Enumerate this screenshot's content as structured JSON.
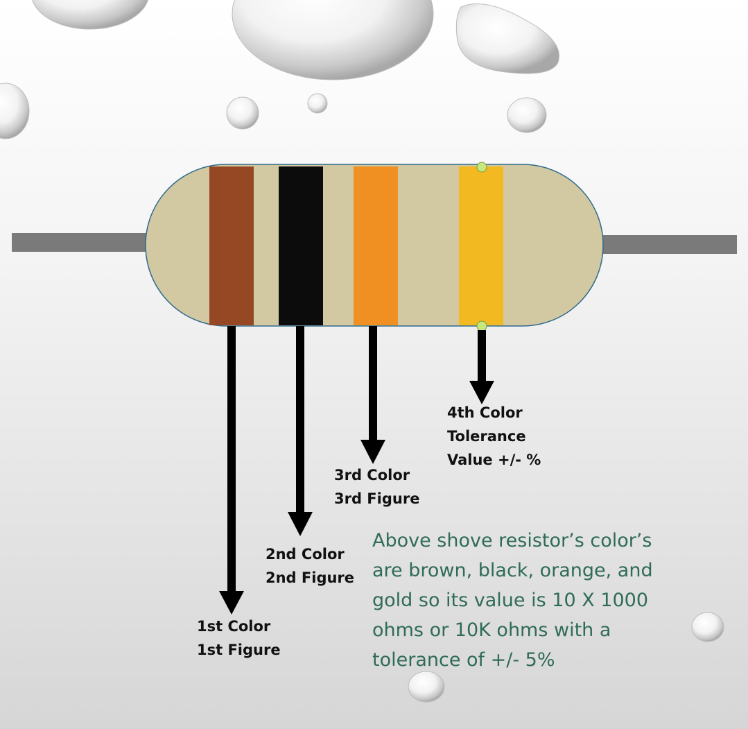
{
  "resistor": {
    "body_color": "#D2C9A2",
    "lead_color": "#7A7A7A",
    "outline_color": "#2E6A8C",
    "handle_color": "#C6E87E",
    "bands": [
      {
        "name": "brown",
        "color": "#964824"
      },
      {
        "name": "black",
        "color": "#0C0C0C"
      },
      {
        "name": "orange",
        "color": "#F08F22"
      },
      {
        "name": "gold",
        "color": "#F2B920"
      }
    ]
  },
  "labels": {
    "first": {
      "line1": "1st Color",
      "line2": "1st Figure"
    },
    "second": {
      "line1": "2nd Color",
      "line2": "2nd Figure"
    },
    "third": {
      "line1": "3rd Color",
      "line2": "3rd Figure"
    },
    "fourth": {
      "line1": "4th Color",
      "line2": "Tolerance",
      "line3": "Value +/- %"
    }
  },
  "summary": {
    "line1": "Above shove resistor’s color’s",
    "line2": "are brown, black, orange, and",
    "line3": "gold so its value is 10 X 1000",
    "line4": "ohms or 10K ohms with a",
    "line5": "tolerance of +/- 5%"
  },
  "text_color": "#2F6B57"
}
